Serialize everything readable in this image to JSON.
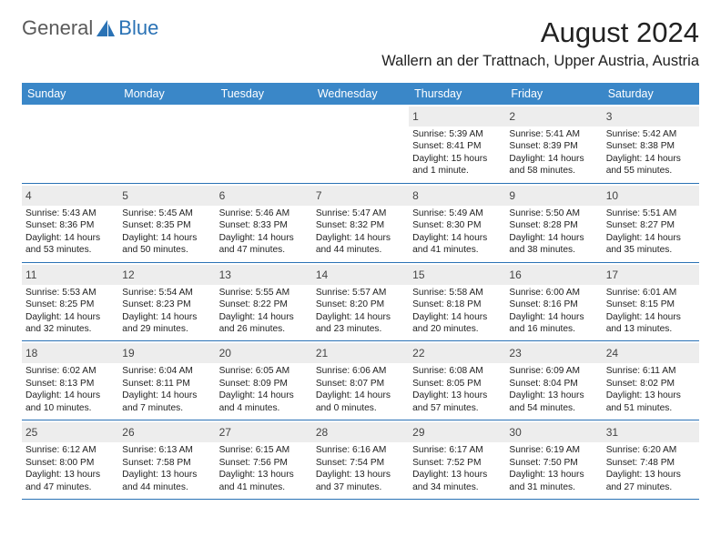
{
  "logo": {
    "general": "General",
    "blue": "Blue"
  },
  "title": "August 2024",
  "location": "Wallern an der Trattnach, Upper Austria, Austria",
  "colors": {
    "header_bar": "#3a87c8",
    "header_text": "#ffffff",
    "daynum_bg": "#ededed",
    "rule": "#2a72b5",
    "logo_gray": "#5a5a5a",
    "logo_blue": "#2a72b5"
  },
  "weekdays": [
    "Sunday",
    "Monday",
    "Tuesday",
    "Wednesday",
    "Thursday",
    "Friday",
    "Saturday"
  ],
  "weeks": [
    [
      {
        "n": "",
        "lines": []
      },
      {
        "n": "",
        "lines": []
      },
      {
        "n": "",
        "lines": []
      },
      {
        "n": "",
        "lines": []
      },
      {
        "n": "1",
        "lines": [
          "Sunrise: 5:39 AM",
          "Sunset: 8:41 PM",
          "Daylight: 15 hours",
          "and 1 minute."
        ]
      },
      {
        "n": "2",
        "lines": [
          "Sunrise: 5:41 AM",
          "Sunset: 8:39 PM",
          "Daylight: 14 hours",
          "and 58 minutes."
        ]
      },
      {
        "n": "3",
        "lines": [
          "Sunrise: 5:42 AM",
          "Sunset: 8:38 PM",
          "Daylight: 14 hours",
          "and 55 minutes."
        ]
      }
    ],
    [
      {
        "n": "4",
        "lines": [
          "Sunrise: 5:43 AM",
          "Sunset: 8:36 PM",
          "Daylight: 14 hours",
          "and 53 minutes."
        ]
      },
      {
        "n": "5",
        "lines": [
          "Sunrise: 5:45 AM",
          "Sunset: 8:35 PM",
          "Daylight: 14 hours",
          "and 50 minutes."
        ]
      },
      {
        "n": "6",
        "lines": [
          "Sunrise: 5:46 AM",
          "Sunset: 8:33 PM",
          "Daylight: 14 hours",
          "and 47 minutes."
        ]
      },
      {
        "n": "7",
        "lines": [
          "Sunrise: 5:47 AM",
          "Sunset: 8:32 PM",
          "Daylight: 14 hours",
          "and 44 minutes."
        ]
      },
      {
        "n": "8",
        "lines": [
          "Sunrise: 5:49 AM",
          "Sunset: 8:30 PM",
          "Daylight: 14 hours",
          "and 41 minutes."
        ]
      },
      {
        "n": "9",
        "lines": [
          "Sunrise: 5:50 AM",
          "Sunset: 8:28 PM",
          "Daylight: 14 hours",
          "and 38 minutes."
        ]
      },
      {
        "n": "10",
        "lines": [
          "Sunrise: 5:51 AM",
          "Sunset: 8:27 PM",
          "Daylight: 14 hours",
          "and 35 minutes."
        ]
      }
    ],
    [
      {
        "n": "11",
        "lines": [
          "Sunrise: 5:53 AM",
          "Sunset: 8:25 PM",
          "Daylight: 14 hours",
          "and 32 minutes."
        ]
      },
      {
        "n": "12",
        "lines": [
          "Sunrise: 5:54 AM",
          "Sunset: 8:23 PM",
          "Daylight: 14 hours",
          "and 29 minutes."
        ]
      },
      {
        "n": "13",
        "lines": [
          "Sunrise: 5:55 AM",
          "Sunset: 8:22 PM",
          "Daylight: 14 hours",
          "and 26 minutes."
        ]
      },
      {
        "n": "14",
        "lines": [
          "Sunrise: 5:57 AM",
          "Sunset: 8:20 PM",
          "Daylight: 14 hours",
          "and 23 minutes."
        ]
      },
      {
        "n": "15",
        "lines": [
          "Sunrise: 5:58 AM",
          "Sunset: 8:18 PM",
          "Daylight: 14 hours",
          "and 20 minutes."
        ]
      },
      {
        "n": "16",
        "lines": [
          "Sunrise: 6:00 AM",
          "Sunset: 8:16 PM",
          "Daylight: 14 hours",
          "and 16 minutes."
        ]
      },
      {
        "n": "17",
        "lines": [
          "Sunrise: 6:01 AM",
          "Sunset: 8:15 PM",
          "Daylight: 14 hours",
          "and 13 minutes."
        ]
      }
    ],
    [
      {
        "n": "18",
        "lines": [
          "Sunrise: 6:02 AM",
          "Sunset: 8:13 PM",
          "Daylight: 14 hours",
          "and 10 minutes."
        ]
      },
      {
        "n": "19",
        "lines": [
          "Sunrise: 6:04 AM",
          "Sunset: 8:11 PM",
          "Daylight: 14 hours",
          "and 7 minutes."
        ]
      },
      {
        "n": "20",
        "lines": [
          "Sunrise: 6:05 AM",
          "Sunset: 8:09 PM",
          "Daylight: 14 hours",
          "and 4 minutes."
        ]
      },
      {
        "n": "21",
        "lines": [
          "Sunrise: 6:06 AM",
          "Sunset: 8:07 PM",
          "Daylight: 14 hours",
          "and 0 minutes."
        ]
      },
      {
        "n": "22",
        "lines": [
          "Sunrise: 6:08 AM",
          "Sunset: 8:05 PM",
          "Daylight: 13 hours",
          "and 57 minutes."
        ]
      },
      {
        "n": "23",
        "lines": [
          "Sunrise: 6:09 AM",
          "Sunset: 8:04 PM",
          "Daylight: 13 hours",
          "and 54 minutes."
        ]
      },
      {
        "n": "24",
        "lines": [
          "Sunrise: 6:11 AM",
          "Sunset: 8:02 PM",
          "Daylight: 13 hours",
          "and 51 minutes."
        ]
      }
    ],
    [
      {
        "n": "25",
        "lines": [
          "Sunrise: 6:12 AM",
          "Sunset: 8:00 PM",
          "Daylight: 13 hours",
          "and 47 minutes."
        ]
      },
      {
        "n": "26",
        "lines": [
          "Sunrise: 6:13 AM",
          "Sunset: 7:58 PM",
          "Daylight: 13 hours",
          "and 44 minutes."
        ]
      },
      {
        "n": "27",
        "lines": [
          "Sunrise: 6:15 AM",
          "Sunset: 7:56 PM",
          "Daylight: 13 hours",
          "and 41 minutes."
        ]
      },
      {
        "n": "28",
        "lines": [
          "Sunrise: 6:16 AM",
          "Sunset: 7:54 PM",
          "Daylight: 13 hours",
          "and 37 minutes."
        ]
      },
      {
        "n": "29",
        "lines": [
          "Sunrise: 6:17 AM",
          "Sunset: 7:52 PM",
          "Daylight: 13 hours",
          "and 34 minutes."
        ]
      },
      {
        "n": "30",
        "lines": [
          "Sunrise: 6:19 AM",
          "Sunset: 7:50 PM",
          "Daylight: 13 hours",
          "and 31 minutes."
        ]
      },
      {
        "n": "31",
        "lines": [
          "Sunrise: 6:20 AM",
          "Sunset: 7:48 PM",
          "Daylight: 13 hours",
          "and 27 minutes."
        ]
      }
    ]
  ]
}
